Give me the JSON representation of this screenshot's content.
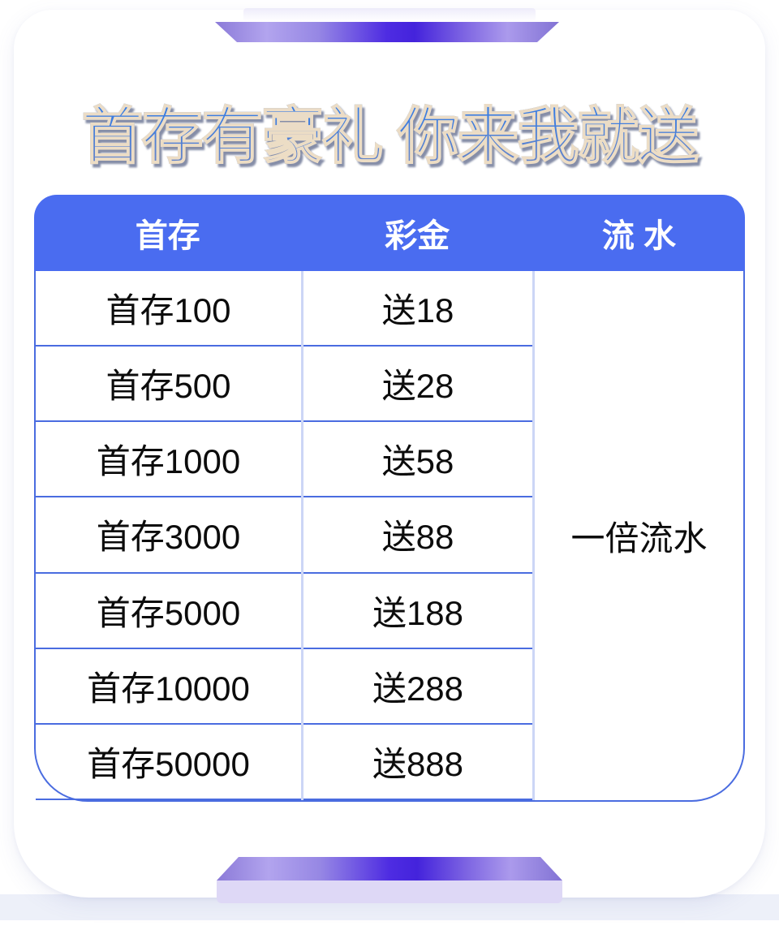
{
  "title": "首存有豪礼 你来我就送",
  "table": {
    "headers": {
      "deposit": "首存",
      "bonus": "彩金",
      "turnover": "流 水"
    },
    "rows": [
      {
        "deposit": "首存100",
        "bonus": "送18"
      },
      {
        "deposit": "首存500",
        "bonus": "送28"
      },
      {
        "deposit": "首存1000",
        "bonus": "送58"
      },
      {
        "deposit": "首存3000",
        "bonus": "送88"
      },
      {
        "deposit": "首存5000",
        "bonus": "送188"
      },
      {
        "deposit": "首存10000",
        "bonus": "送288"
      },
      {
        "deposit": "首存50000",
        "bonus": "送888"
      }
    ],
    "turnover_value": "一倍流水"
  },
  "colors": {
    "header_bg": "#4a6cf0",
    "border_blue": "#4a6ce0",
    "divider_light": "#ccd6f6",
    "accent_violet": "#4423dc",
    "platform_face": "#ded8f6",
    "page_band": "#edf0f9",
    "title_gradient_top": "#2e7ce9",
    "title_gradient_bottom": "#7287c2",
    "title_outline": "#f4e1c4"
  }
}
